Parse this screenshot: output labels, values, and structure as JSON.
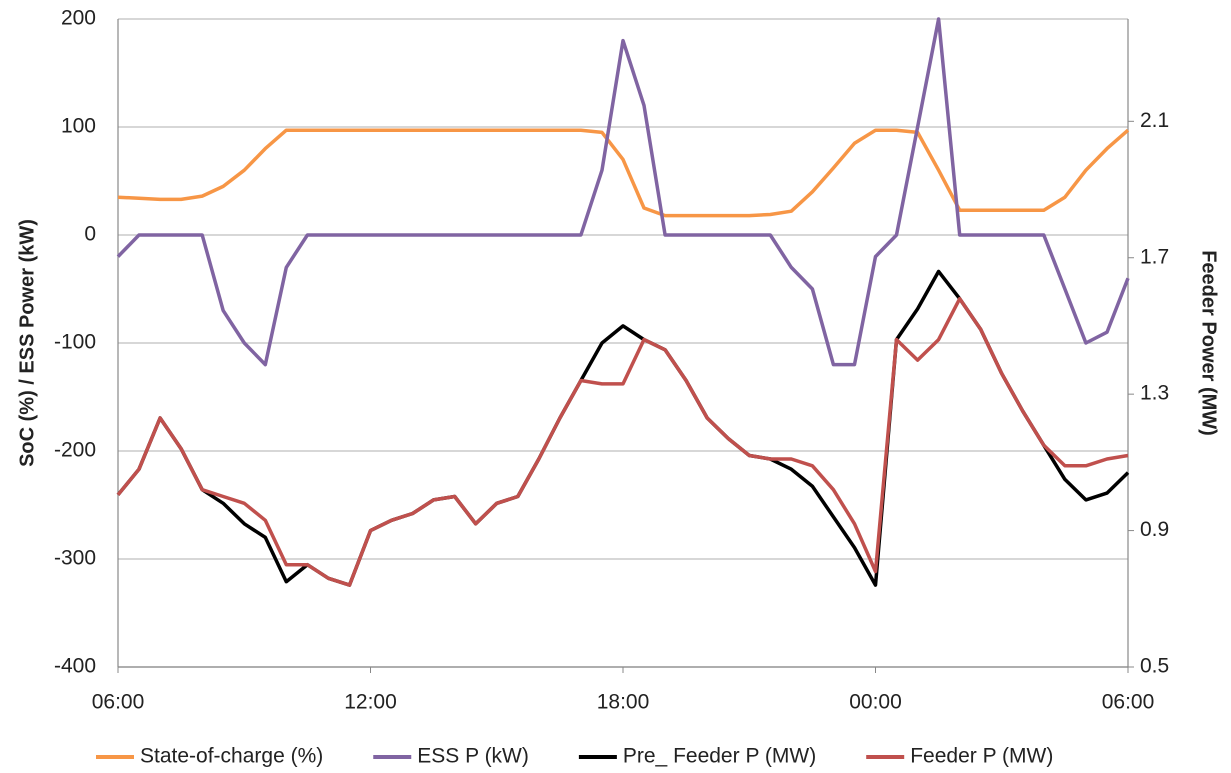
{
  "chart_data": {
    "type": "line",
    "y_label": "SoC (%) / ESS Power (kW)",
    "y2_label": "Feeder Power (MW)",
    "x": [
      6,
      6.5,
      7,
      7.5,
      8,
      8.5,
      9,
      9.5,
      10,
      10.5,
      11,
      11.5,
      12,
      12.5,
      13,
      13.5,
      14,
      14.5,
      15,
      15.5,
      16,
      16.5,
      17,
      17.5,
      18,
      18.5,
      19,
      19.5,
      20,
      20.5,
      21,
      21.5,
      22,
      22.5,
      23,
      23.5,
      24,
      24.5,
      25,
      25.5,
      26,
      26.5,
      27,
      27.5,
      28,
      28.5,
      29,
      29.5,
      30
    ],
    "xlim": [
      6,
      30
    ],
    "xticks": [
      {
        "value": 6,
        "label": "06:00"
      },
      {
        "value": 12,
        "label": "12:00"
      },
      {
        "value": 18,
        "label": "18:00"
      },
      {
        "value": 24,
        "label": "00:00"
      },
      {
        "value": 30,
        "label": "06:00"
      }
    ],
    "ylim": [
      -400,
      200
    ],
    "yticks": [
      -400,
      -300,
      -200,
      -100,
      0,
      100,
      200
    ],
    "y2lim": [
      0.5,
      2.4
    ],
    "y2ticks": [
      0.5,
      0.9,
      1.3,
      1.7,
      2.1
    ],
    "grid": true,
    "legend": "bottom",
    "series": [
      {
        "name": "State-of-charge (%)",
        "color": "#f79646",
        "values": [
          35,
          34,
          33,
          33,
          36,
          45,
          60,
          80,
          97,
          97,
          97,
          97,
          97,
          97,
          97,
          97,
          97,
          97,
          97,
          97,
          97,
          97,
          97,
          95,
          70,
          25,
          18,
          18,
          18,
          18,
          18,
          19,
          22,
          40,
          62,
          85,
          97,
          97,
          95,
          60,
          23,
          23,
          23,
          23,
          23,
          35,
          60,
          80,
          97
        ]
      },
      {
        "name": "ESS P (kW)",
        "color": "#8064a2",
        "values": [
          -20,
          0,
          0,
          0,
          0,
          -70,
          -100,
          -120,
          -30,
          0,
          0,
          0,
          0,
          0,
          0,
          0,
          0,
          0,
          0,
          0,
          0,
          0,
          0,
          60,
          180,
          120,
          0,
          0,
          0,
          0,
          0,
          0,
          -30,
          -50,
          -120,
          -120,
          -20,
          0,
          100,
          200,
          0,
          0,
          0,
          0,
          0,
          -50,
          -100,
          -90,
          -40
        ]
      },
      {
        "name": "Pre_ Feeder P (MW)",
        "color": "#000000",
        "axis": "y2",
        "values": [
          1.005,
          1.08,
          1.23,
          1.14,
          1.02,
          0.98,
          0.92,
          0.88,
          0.75,
          0.8,
          0.76,
          0.74,
          0.9,
          0.93,
          0.95,
          0.99,
          1.0,
          0.92,
          0.98,
          1.0,
          1.11,
          1.23,
          1.34,
          1.45,
          1.5,
          1.46,
          1.43,
          1.34,
          1.23,
          1.17,
          1.12,
          1.11,
          1.08,
          1.03,
          0.94,
          0.85,
          0.74,
          1.46,
          1.55,
          1.66,
          1.58,
          1.49,
          1.36,
          1.25,
          1.15,
          1.05,
          0.99,
          1.01,
          1.07
        ]
      },
      {
        "name": "Feeder P (MW)",
        "color": "#c0504d",
        "axis": "y2",
        "values": [
          1.005,
          1.08,
          1.23,
          1.14,
          1.02,
          1.0,
          0.98,
          0.93,
          0.8,
          0.8,
          0.76,
          0.74,
          0.9,
          0.93,
          0.95,
          0.99,
          1.0,
          0.92,
          0.98,
          1.0,
          1.11,
          1.23,
          1.34,
          1.33,
          1.33,
          1.46,
          1.43,
          1.34,
          1.23,
          1.17,
          1.12,
          1.11,
          1.11,
          1.09,
          1.02,
          0.92,
          0.78,
          1.46,
          1.4,
          1.46,
          1.58,
          1.49,
          1.36,
          1.25,
          1.15,
          1.09,
          1.09,
          1.11,
          1.12
        ]
      }
    ]
  }
}
